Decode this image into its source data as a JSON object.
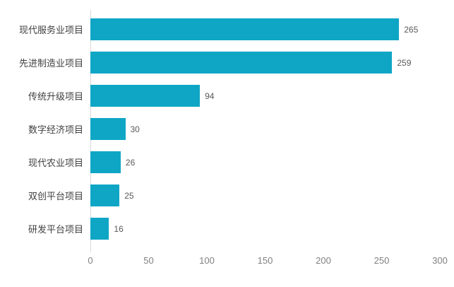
{
  "chart_data": {
    "type": "bar",
    "orientation": "horizontal",
    "title": "",
    "xlabel": "",
    "ylabel": "",
    "categories": [
      "现代服务业项目",
      "先进制造业项目",
      "传统升级项目",
      "数字经济项目",
      "现代农业项目",
      "双创平台项目",
      "研发平台项目"
    ],
    "values": [
      265,
      259,
      94,
      30,
      26,
      25,
      16
    ],
    "xlim": [
      0,
      300
    ],
    "x_ticks": [
      0,
      50,
      100,
      150,
      200,
      250,
      300
    ],
    "grid": false,
    "legend": false,
    "bar_color": "#0fa6c5",
    "axis_line_color": "#d9d9d9",
    "tick_label_color": "#808080",
    "category_label_color": "#404040",
    "value_label_color": "#595959"
  }
}
